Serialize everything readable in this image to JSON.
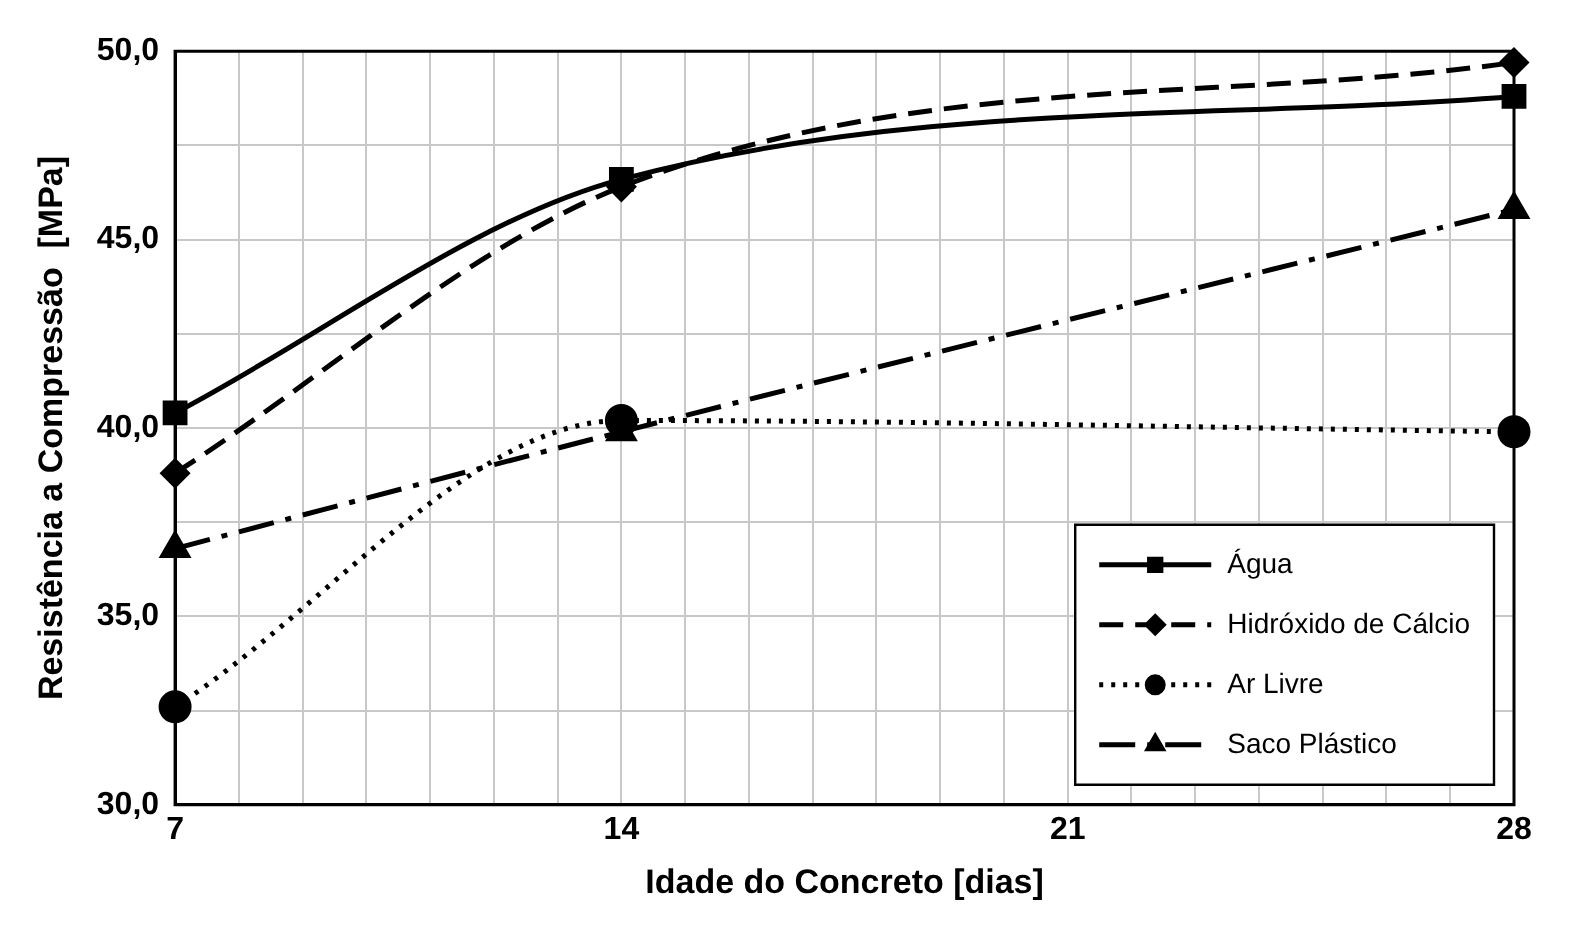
{
  "chart_data": {
    "type": "line",
    "xlabel": "Idade do Concreto [dias]",
    "ylabel": "Resistência a Compressão  [MPa]",
    "x": [
      7,
      14,
      28
    ],
    "series": [
      {
        "name": "Água",
        "color": "#000000",
        "values": [
          40.4,
          46.6,
          48.8
        ],
        "marker": "square",
        "line_style": "solid"
      },
      {
        "name": "Hidróxido de Cálcio",
        "color": "#000000",
        "values": [
          38.8,
          46.4,
          49.7
        ],
        "marker": "diamond",
        "line_style": "dashed"
      },
      {
        "name": "Ar Livre",
        "color": "#000000",
        "values": [
          32.6,
          40.2,
          39.9
        ],
        "marker": "circle",
        "line_style": "dotted"
      },
      {
        "name": "Saco Plástico",
        "color": "#000000",
        "values": [
          36.8,
          39.9,
          45.8
        ],
        "marker": "triangle",
        "line_style": "dashdot"
      }
    ],
    "xlim": [
      7,
      28
    ],
    "xticks": [
      7,
      {
        "value": 8,
        "label": null
      },
      {
        "value": 9,
        "label": null
      },
      {
        "value": 10,
        "label": null
      },
      {
        "value": 11,
        "label": null
      },
      {
        "value": 12,
        "label": null
      },
      {
        "value": 13,
        "label": null
      },
      14,
      {
        "value": 15,
        "label": null
      },
      {
        "value": 16,
        "label": null
      },
      {
        "value": 17,
        "label": null
      },
      {
        "value": 18,
        "label": null
      },
      {
        "value": 19,
        "label": null
      },
      {
        "value": 20,
        "label": null
      },
      21,
      {
        "value": 22,
        "label": null
      },
      {
        "value": 23,
        "label": null
      },
      {
        "value": 24,
        "label": null
      },
      {
        "value": 25,
        "label": null
      },
      {
        "value": 26,
        "label": null
      },
      {
        "value": 27,
        "label": null
      },
      28
    ],
    "ylim": [
      30,
      50
    ],
    "yticks": [
      {
        "value": 30,
        "label": "30,0"
      },
      {
        "value": 32.5,
        "label": null
      },
      {
        "value": 35,
        "label": "35,0"
      },
      {
        "value": 37.5,
        "label": null
      },
      {
        "value": 40,
        "label": "40,0"
      },
      {
        "value": 42.5,
        "label": null
      },
      {
        "value": 45,
        "label": "45,0"
      },
      {
        "value": 47.5,
        "label": null
      },
      {
        "value": 50,
        "label": "50,0"
      }
    ],
    "grid": true,
    "legend": "bottom right"
  }
}
